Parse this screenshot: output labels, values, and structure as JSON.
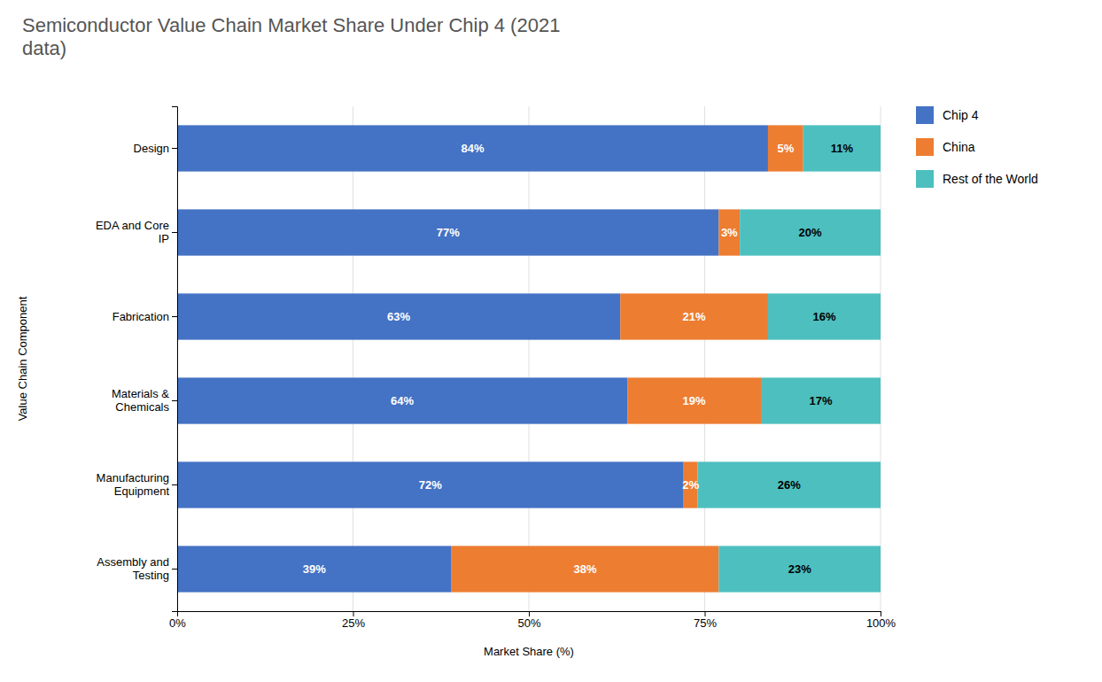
{
  "chart_data": {
    "type": "bar",
    "orientation": "horizontal",
    "stacked": true,
    "title": "Semiconductor Value Chain Market Share Under Chip 4 (2021\ndata)",
    "xlabel": "Market Share (%)",
    "ylabel": "Value Chain Component",
    "categories": [
      "Design",
      "EDA and Core\nIP",
      "Fabrication",
      "Materials &\nChemicals",
      "Manufacturing\nEquipment",
      "Assembly and\nTesting"
    ],
    "series": [
      {
        "name": "Chip 4",
        "color": "#4472C4",
        "values": [
          84,
          77,
          63,
          64,
          72,
          39
        ],
        "value_labels": [
          "84%",
          "77%",
          "63%",
          "64%",
          "72%",
          "39%"
        ]
      },
      {
        "name": "China",
        "color": "#ED7D31",
        "values": [
          5,
          3,
          21,
          19,
          2,
          38
        ],
        "value_labels": [
          "5%",
          "3%",
          "21%",
          "19%",
          "2%",
          "38%"
        ]
      },
      {
        "name": "Rest of the World",
        "color": "#4DBFBF",
        "values": [
          11,
          20,
          16,
          17,
          26,
          23
        ],
        "value_labels": [
          "11%",
          "20%",
          "16%",
          "17%",
          "26%",
          "23%"
        ]
      }
    ],
    "xlim": [
      0,
      100
    ],
    "xticks": [
      {
        "value": 0,
        "label": "0%"
      },
      {
        "value": 25,
        "label": "25%"
      },
      {
        "value": 50,
        "label": "50%"
      },
      {
        "value": 75,
        "label": "75%"
      },
      {
        "value": 100,
        "label": "100%"
      }
    ],
    "grid": true,
    "legend": "right",
    "data_labels": true
  }
}
